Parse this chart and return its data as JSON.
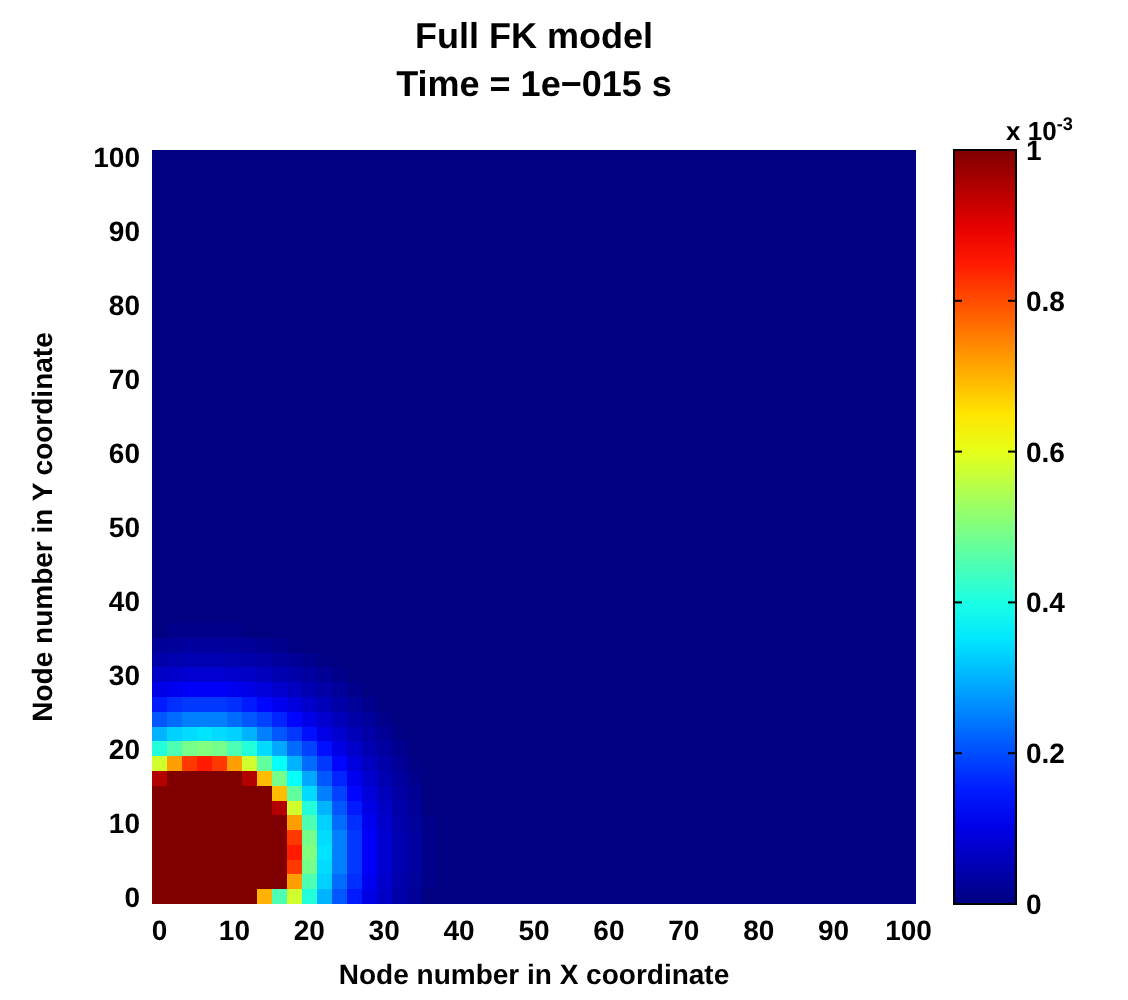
{
  "chart_data": {
    "type": "heatmap",
    "title": "Full FK model",
    "subtitle": "Time = 1e−015 s",
    "xlabel": "Node number in X coordinate",
    "ylabel": "Node number in Y coordinate",
    "clabel": "x 10$^{-3}$",
    "categories": [
      "0",
      null,
      null,
      null,
      null,
      "10",
      null,
      null,
      null,
      null,
      "20",
      null,
      null,
      null,
      null,
      "30",
      null,
      null,
      null,
      null,
      "40",
      null,
      null,
      null,
      null,
      "50",
      null,
      null,
      null,
      null,
      "60",
      null,
      null,
      null,
      null,
      "70",
      null,
      null,
      null,
      null,
      "80",
      null,
      null,
      null,
      null,
      "90",
      null,
      null,
      null,
      null,
      "100"
    ],
    "y_categories": [
      "100",
      null,
      null,
      null,
      null,
      "90",
      null,
      null,
      null,
      null,
      "80",
      null,
      null,
      null,
      null,
      "70",
      null,
      null,
      null,
      null,
      "60",
      null,
      null,
      null,
      null,
      "50",
      null,
      null,
      null,
      null,
      "40",
      null,
      null,
      null,
      null,
      "30",
      null,
      null,
      null,
      null,
      "20",
      null,
      null,
      null,
      null,
      "10",
      null,
      null,
      null,
      null,
      "0"
    ],
    "clim": [
      0,
      1
    ],
    "cticks": [
      0,
      0.2,
      0.4,
      0.6,
      0.8,
      1
    ],
    "cells": [
      [
        0,
        0,
        0,
        0,
        0,
        0,
        0,
        0,
        0,
        0,
        0,
        0,
        0,
        0,
        0,
        0,
        0,
        0,
        0,
        0,
        0,
        0,
        0,
        0,
        0,
        0,
        0,
        0,
        0,
        0,
        0,
        0,
        0,
        0,
        0,
        0,
        0,
        0,
        0,
        0,
        0,
        0,
        0,
        0,
        0,
        0,
        0,
        0,
        0,
        0,
        0
      ],
      [
        0,
        0,
        0,
        0,
        0,
        0,
        0,
        0,
        0,
        0,
        0,
        0,
        0,
        0,
        0,
        0,
        0,
        0,
        0,
        0,
        0,
        0,
        0,
        0,
        0,
        0,
        0,
        0,
        0,
        0,
        0,
        0,
        0,
        0,
        0,
        0,
        0,
        0,
        0,
        0,
        0,
        0,
        0,
        0,
        0,
        0,
        0,
        0,
        0,
        0,
        0
      ],
      [
        0,
        0,
        0,
        0,
        0,
        0,
        0,
        0,
        0,
        0,
        0,
        0,
        0,
        0,
        0,
        0,
        0,
        0,
        0,
        0,
        0,
        0,
        0,
        0,
        0,
        0,
        0,
        0,
        0,
        0,
        0,
        0,
        0,
        0,
        0,
        0,
        0,
        0,
        0,
        0,
        0,
        0,
        0,
        0,
        0,
        0,
        0,
        0,
        0,
        0,
        0
      ],
      [
        0,
        0,
        0,
        0,
        0,
        0,
        0,
        0,
        0,
        0,
        0,
        0,
        0,
        0,
        0,
        0,
        0,
        0,
        0,
        0,
        0,
        0,
        0,
        0,
        0,
        0,
        0,
        0,
        0,
        0,
        0,
        0,
        0,
        0,
        0,
        0,
        0,
        0,
        0,
        0,
        0,
        0,
        0,
        0,
        0,
        0,
        0,
        0,
        0,
        0,
        0
      ],
      [
        0,
        0,
        0,
        0,
        0,
        0,
        0,
        0,
        0,
        0,
        0,
        0,
        0,
        0,
        0,
        0,
        0,
        0,
        0,
        0,
        0,
        0,
        0,
        0,
        0,
        0,
        0,
        0,
        0,
        0,
        0,
        0,
        0,
        0,
        0,
        0,
        0,
        0,
        0,
        0,
        0,
        0,
        0,
        0,
        0,
        0,
        0,
        0,
        0,
        0,
        0
      ],
      [
        0,
        0,
        0,
        0,
        0,
        0,
        0,
        0,
        0,
        0,
        0,
        0,
        0,
        0,
        0,
        0,
        0,
        0,
        0,
        0,
        0,
        0,
        0,
        0,
        0,
        0,
        0,
        0,
        0,
        0,
        0,
        0,
        0,
        0,
        0,
        0,
        0,
        0,
        0,
        0,
        0,
        0,
        0,
        0,
        0,
        0,
        0,
        0,
        0,
        0,
        0
      ],
      [
        0,
        0,
        0,
        0,
        0,
        0,
        0,
        0,
        0,
        0,
        0,
        0,
        0,
        0,
        0,
        0,
        0,
        0,
        0,
        0,
        0,
        0,
        0,
        0,
        0,
        0,
        0,
        0,
        0,
        0,
        0,
        0,
        0,
        0,
        0,
        0,
        0,
        0,
        0,
        0,
        0,
        0,
        0,
        0,
        0,
        0,
        0,
        0,
        0,
        0,
        0
      ],
      [
        0,
        0,
        0,
        0,
        0,
        0,
        0,
        0,
        0,
        0,
        0,
        0,
        0,
        0,
        0,
        0,
        0,
        0,
        0,
        0,
        0,
        0,
        0,
        0,
        0,
        0,
        0,
        0,
        0,
        0,
        0,
        0,
        0,
        0,
        0,
        0,
        0,
        0,
        0,
        0,
        0,
        0,
        0,
        0,
        0,
        0,
        0,
        0,
        0,
        0,
        0
      ],
      [
        0,
        0,
        0,
        0,
        0,
        0,
        0,
        0,
        0,
        0,
        0,
        0,
        0,
        0,
        0,
        0,
        0,
        0,
        0,
        0,
        0,
        0,
        0,
        0,
        0,
        0,
        0,
        0,
        0,
        0,
        0,
        0,
        0,
        0,
        0,
        0,
        0,
        0,
        0,
        0,
        0,
        0,
        0,
        0,
        0,
        0,
        0,
        0,
        0,
        0,
        0
      ],
      [
        0,
        0,
        0,
        0,
        0,
        0,
        0,
        0,
        0,
        0,
        0,
        0,
        0,
        0,
        0,
        0,
        0,
        0,
        0,
        0,
        0,
        0,
        0,
        0,
        0,
        0,
        0,
        0,
        0,
        0,
        0,
        0,
        0,
        0,
        0,
        0,
        0,
        0,
        0,
        0,
        0,
        0,
        0,
        0,
        0,
        0,
        0,
        0,
        0,
        0,
        0
      ],
      [
        0,
        0,
        0,
        0,
        0,
        0,
        0,
        0,
        0,
        0,
        0,
        0,
        0,
        0,
        0,
        0,
        0,
        0,
        0,
        0,
        0,
        0,
        0,
        0,
        0,
        0,
        0,
        0,
        0,
        0,
        0,
        0,
        0,
        0,
        0,
        0,
        0,
        0,
        0,
        0,
        0,
        0,
        0,
        0,
        0,
        0,
        0,
        0,
        0,
        0,
        0
      ],
      [
        0,
        0,
        0,
        0,
        0,
        0,
        0,
        0,
        0,
        0,
        0,
        0,
        0,
        0,
        0,
        0,
        0,
        0,
        0,
        0,
        0,
        0,
        0,
        0,
        0,
        0,
        0,
        0,
        0,
        0,
        0,
        0,
        0,
        0,
        0,
        0,
        0,
        0,
        0,
        0,
        0,
        0,
        0,
        0,
        0,
        0,
        0,
        0,
        0,
        0,
        0
      ],
      [
        0,
        0,
        0,
        0,
        0,
        0,
        0,
        0,
        0,
        0,
        0,
        0,
        0,
        0,
        0,
        0,
        0,
        0,
        0,
        0,
        0,
        0,
        0,
        0,
        0,
        0,
        0,
        0,
        0,
        0,
        0,
        0,
        0,
        0,
        0,
        0,
        0,
        0,
        0,
        0,
        0,
        0,
        0,
        0,
        0,
        0,
        0,
        0,
        0,
        0,
        0
      ],
      [
        0,
        0,
        0,
        0,
        0,
        0,
        0,
        0,
        0,
        0,
        0,
        0,
        0,
        0,
        0,
        0,
        0,
        0,
        0,
        0,
        0,
        0,
        0,
        0,
        0,
        0,
        0,
        0,
        0,
        0,
        0,
        0,
        0,
        0,
        0,
        0,
        0,
        0,
        0,
        0,
        0,
        0,
        0,
        0,
        0,
        0,
        0,
        0,
        0,
        0,
        0
      ],
      [
        0,
        0,
        0,
        0,
        0,
        0,
        0,
        0,
        0,
        0,
        0,
        0,
        0,
        0,
        0,
        0,
        0,
        0,
        0,
        0,
        0,
        0,
        0,
        0,
        0,
        0,
        0,
        0,
        0,
        0,
        0,
        0,
        0,
        0,
        0,
        0,
        0,
        0,
        0,
        0,
        0,
        0,
        0,
        0,
        0,
        0,
        0,
        0,
        0,
        0,
        0
      ],
      [
        0,
        0,
        0,
        0,
        0,
        0,
        0,
        0,
        0,
        0,
        0,
        0,
        0,
        0,
        0,
        0,
        0,
        0,
        0,
        0,
        0,
        0,
        0,
        0,
        0,
        0,
        0,
        0,
        0,
        0,
        0,
        0,
        0,
        0,
        0,
        0,
        0,
        0,
        0,
        0,
        0,
        0,
        0,
        0,
        0,
        0,
        0,
        0,
        0,
        0,
        0
      ],
      [
        0,
        0,
        0,
        0,
        0,
        0,
        0,
        0,
        0,
        0,
        0,
        0,
        0,
        0,
        0,
        0,
        0,
        0,
        0,
        0,
        0,
        0,
        0,
        0,
        0,
        0,
        0,
        0,
        0,
        0,
        0,
        0,
        0,
        0,
        0,
        0,
        0,
        0,
        0,
        0,
        0,
        0,
        0,
        0,
        0,
        0,
        0,
        0,
        0,
        0,
        0
      ],
      [
        0,
        0,
        0,
        0,
        0,
        0,
        0,
        0,
        0,
        0,
        0,
        0,
        0,
        0,
        0,
        0,
        0,
        0,
        0,
        0,
        0,
        0,
        0,
        0,
        0,
        0,
        0,
        0,
        0,
        0,
        0,
        0,
        0,
        0,
        0,
        0,
        0,
        0,
        0,
        0,
        0,
        0,
        0,
        0,
        0,
        0,
        0,
        0,
        0,
        0,
        0
      ],
      [
        0,
        0,
        0,
        0,
        0,
        0,
        0,
        0,
        0,
        0,
        0,
        0,
        0,
        0,
        0,
        0,
        0,
        0,
        0,
        0,
        0,
        0,
        0,
        0,
        0,
        0,
        0,
        0,
        0,
        0,
        0,
        0,
        0,
        0,
        0,
        0,
        0,
        0,
        0,
        0,
        0,
        0,
        0,
        0,
        0,
        0,
        0,
        0,
        0,
        0,
        0
      ],
      [
        0,
        0,
        0,
        0,
        0,
        0,
        0,
        0,
        0,
        0,
        0,
        0,
        0,
        0,
        0,
        0,
        0,
        0,
        0,
        0,
        0,
        0,
        0,
        0,
        0,
        0,
        0,
        0,
        0,
        0,
        0,
        0,
        0,
        0,
        0,
        0,
        0,
        0,
        0,
        0,
        0,
        0,
        0,
        0,
        0,
        0,
        0,
        0,
        0,
        0,
        0
      ],
      [
        0,
        0,
        0,
        0,
        0,
        0,
        0,
        0,
        0,
        0,
        0,
        0,
        0,
        0,
        0,
        0,
        0,
        0,
        0,
        0,
        0,
        0,
        0,
        0,
        0,
        0,
        0,
        0,
        0,
        0,
        0,
        0,
        0,
        0,
        0,
        0,
        0,
        0,
        0,
        0,
        0,
        0,
        0,
        0,
        0,
        0,
        0,
        0,
        0,
        0,
        0
      ],
      [
        0,
        0,
        0,
        0,
        0,
        0,
        0,
        0,
        0,
        0,
        0,
        0,
        0,
        0,
        0,
        0,
        0,
        0,
        0,
        0,
        0,
        0,
        0,
        0,
        0,
        0,
        0,
        0,
        0,
        0,
        0,
        0,
        0,
        0,
        0,
        0,
        0,
        0,
        0,
        0,
        0,
        0,
        0,
        0,
        0,
        0,
        0,
        0,
        0,
        0,
        0
      ],
      [
        0,
        0,
        0,
        0,
        0,
        0,
        0,
        0,
        0,
        0,
        0,
        0,
        0,
        0,
        0,
        0,
        0,
        0,
        0,
        0,
        0,
        0,
        0,
        0,
        0,
        0,
        0,
        0,
        0,
        0,
        0,
        0,
        0,
        0,
        0,
        0,
        0,
        0,
        0,
        0,
        0,
        0,
        0,
        0,
        0,
        0,
        0,
        0,
        0,
        0,
        0
      ],
      [
        0,
        0,
        0,
        0,
        0,
        0,
        0,
        0,
        0,
        0,
        0,
        0,
        0,
        0,
        0,
        0,
        0,
        0,
        0,
        0,
        0,
        0,
        0,
        0,
        0,
        0,
        0,
        0,
        0,
        0,
        0,
        0,
        0,
        0,
        0,
        0,
        0,
        0,
        0,
        0,
        0,
        0,
        0,
        0,
        0,
        0,
        0,
        0,
        0,
        0,
        0
      ],
      [
        0,
        0,
        0,
        0,
        0,
        0,
        0,
        0,
        0,
        0,
        0,
        0,
        0,
        0,
        0,
        0,
        0,
        0,
        0,
        0,
        0,
        0,
        0,
        0,
        0,
        0,
        0,
        0,
        0,
        0,
        0,
        0,
        0,
        0,
        0,
        0,
        0,
        0,
        0,
        0,
        0,
        0,
        0,
        0,
        0,
        0,
        0,
        0,
        0,
        0,
        0
      ],
      [
        0,
        0,
        0,
        0,
        0,
        0,
        0,
        0,
        0,
        0,
        0,
        0,
        0,
        0,
        0,
        0,
        0,
        0,
        0,
        0,
        0,
        0,
        0,
        0,
        0,
        0,
        0,
        0,
        0,
        0,
        0,
        0,
        0,
        0,
        0,
        0,
        0,
        0,
        0,
        0,
        0,
        0,
        0,
        0,
        0,
        0,
        0,
        0,
        0,
        0,
        0
      ],
      [
        0,
        0,
        0,
        0,
        0,
        0,
        0,
        0,
        0,
        0,
        0,
        0,
        0,
        0,
        0,
        0,
        0,
        0,
        0,
        0,
        0,
        0,
        0,
        0,
        0,
        0,
        0,
        0,
        0,
        0,
        0,
        0,
        0,
        0,
        0,
        0,
        0,
        0,
        0,
        0,
        0,
        0,
        0,
        0,
        0,
        0,
        0,
        0,
        0,
        0,
        0
      ],
      [
        0,
        0,
        0,
        0,
        0,
        0,
        0,
        0,
        0,
        0,
        0,
        0,
        0,
        0,
        0,
        0,
        0,
        0,
        0,
        0,
        0,
        0,
        0,
        0,
        0,
        0,
        0,
        0,
        0,
        0,
        0,
        0,
        0,
        0,
        0,
        0,
        0,
        0,
        0,
        0,
        0,
        0,
        0,
        0,
        0,
        0,
        0,
        0,
        0,
        0,
        0
      ],
      [
        0,
        0,
        0,
        0,
        0,
        0,
        0,
        0,
        0,
        0,
        0,
        0,
        0,
        0,
        0,
        0,
        0,
        0,
        0,
        0,
        0,
        0,
        0,
        0,
        0,
        0,
        0,
        0,
        0,
        0,
        0,
        0,
        0,
        0,
        0,
        0,
        0,
        0,
        0,
        0,
        0,
        0,
        0,
        0,
        0,
        0,
        0,
        0,
        0,
        0,
        0
      ],
      [
        0,
        0,
        0,
        0,
        0,
        0,
        0,
        0,
        0,
        0,
        0,
        0,
        0,
        0,
        0,
        0,
        0,
        0,
        0,
        0,
        0,
        0,
        0,
        0,
        0,
        0,
        0,
        0,
        0,
        0,
        0,
        0,
        0,
        0,
        0,
        0,
        0,
        0,
        0,
        0,
        0,
        0,
        0,
        0,
        0,
        0,
        0,
        0,
        0,
        0,
        0
      ],
      [
        0,
        0,
        0,
        0,
        0,
        0,
        0,
        0,
        0,
        0,
        0,
        0,
        0,
        0,
        0,
        0,
        0,
        0,
        0,
        0,
        0,
        0,
        0,
        0,
        0,
        0,
        0,
        0,
        0,
        0,
        0,
        0,
        0,
        0,
        0,
        0,
        0,
        0,
        0,
        0,
        0,
        0,
        0,
        0,
        0,
        0,
        0,
        0,
        0,
        0,
        0
      ],
      [
        0,
        0,
        0,
        0,
        0,
        0,
        0,
        0,
        0,
        0,
        0,
        0,
        0,
        0,
        0,
        0,
        0,
        0,
        0,
        0,
        0,
        0,
        0,
        0,
        0,
        0,
        0,
        0,
        0,
        0,
        0,
        0,
        0,
        0,
        0,
        0,
        0,
        0,
        0,
        0,
        0,
        0,
        0,
        0,
        0,
        0,
        0,
        0,
        0,
        0,
        0
      ],
      [
        0,
        0.01,
        0.01,
        0.01,
        0.01,
        0.01,
        0,
        0,
        0,
        0,
        0,
        0,
        0,
        0,
        0,
        0,
        0,
        0,
        0,
        0,
        0,
        0,
        0,
        0,
        0,
        0,
        0,
        0,
        0,
        0,
        0,
        0,
        0,
        0,
        0,
        0,
        0,
        0,
        0,
        0,
        0,
        0,
        0,
        0,
        0,
        0,
        0,
        0,
        0,
        0,
        0
      ],
      [
        0.024,
        0.027,
        0.03,
        0.03,
        0.03,
        0.027,
        0.024,
        0.019,
        0.013,
        0.005,
        0,
        0,
        0,
        0,
        0,
        0,
        0,
        0,
        0,
        0,
        0,
        0,
        0,
        0,
        0,
        0,
        0,
        0,
        0,
        0,
        0,
        0,
        0,
        0,
        0,
        0,
        0,
        0,
        0,
        0,
        0,
        0,
        0,
        0,
        0,
        0,
        0,
        0,
        0,
        0,
        0
      ],
      [
        0.043,
        0.047,
        0.05,
        0.05,
        0.05,
        0.047,
        0.043,
        0.038,
        0.031,
        0.024,
        0.015,
        0.005,
        0,
        0,
        0,
        0,
        0,
        0,
        0,
        0,
        0,
        0,
        0,
        0,
        0,
        0,
        0,
        0,
        0,
        0,
        0,
        0,
        0,
        0,
        0,
        0,
        0,
        0,
        0,
        0,
        0,
        0,
        0,
        0,
        0,
        0,
        0,
        0,
        0,
        0,
        0
      ],
      [
        0.07,
        0.075,
        0.08,
        0.08,
        0.08,
        0.075,
        0.07,
        0.06,
        0.05,
        0.042,
        0.032,
        0.022,
        0.01,
        0,
        0,
        0,
        0,
        0,
        0,
        0,
        0,
        0,
        0,
        0,
        0,
        0,
        0,
        0,
        0,
        0,
        0,
        0,
        0,
        0,
        0,
        0,
        0,
        0,
        0,
        0,
        0,
        0,
        0,
        0,
        0,
        0,
        0,
        0,
        0,
        0,
        0
      ],
      [
        0.1,
        0.11,
        0.12,
        0.12,
        0.12,
        0.11,
        0.1,
        0.09,
        0.077,
        0.064,
        0.049,
        0.038,
        0.026,
        0.013,
        0,
        0,
        0,
        0,
        0,
        0,
        0,
        0,
        0,
        0,
        0,
        0,
        0,
        0,
        0,
        0,
        0,
        0,
        0,
        0,
        0,
        0,
        0,
        0,
        0,
        0,
        0,
        0,
        0,
        0,
        0,
        0,
        0,
        0,
        0,
        0,
        0
      ],
      [
        0.15,
        0.17,
        0.18,
        0.18,
        0.18,
        0.17,
        0.15,
        0.13,
        0.11,
        0.094,
        0.074,
        0.056,
        0.041,
        0.027,
        0.013,
        0,
        0,
        0,
        0,
        0,
        0,
        0,
        0,
        0,
        0,
        0,
        0,
        0,
        0,
        0,
        0,
        0,
        0,
        0,
        0,
        0,
        0,
        0,
        0,
        0,
        0,
        0,
        0,
        0,
        0,
        0,
        0,
        0,
        0,
        0,
        0
      ],
      [
        0.21,
        0.23,
        0.25,
        0.25,
        0.25,
        0.23,
        0.21,
        0.19,
        0.16,
        0.13,
        0.1,
        0.078,
        0.058,
        0.041,
        0.026,
        0.01,
        0,
        0,
        0,
        0,
        0,
        0,
        0,
        0,
        0,
        0,
        0,
        0,
        0,
        0,
        0,
        0,
        0,
        0,
        0,
        0,
        0,
        0,
        0,
        0,
        0,
        0,
        0,
        0,
        0,
        0,
        0,
        0,
        0,
        0,
        0
      ],
      [
        0.3,
        0.33,
        0.34,
        0.35,
        0.34,
        0.33,
        0.3,
        0.25,
        0.21,
        0.18,
        0.14,
        0.1,
        0.078,
        0.056,
        0.038,
        0.022,
        0.005,
        0,
        0,
        0,
        0,
        0,
        0,
        0,
        0,
        0,
        0,
        0,
        0,
        0,
        0,
        0,
        0,
        0,
        0,
        0,
        0,
        0,
        0,
        0,
        0,
        0,
        0,
        0,
        0,
        0,
        0,
        0,
        0,
        0,
        0
      ],
      [
        0.41,
        0.45,
        0.49,
        0.5,
        0.49,
        0.45,
        0.41,
        0.34,
        0.29,
        0.23,
        0.19,
        0.14,
        0.1,
        0.074,
        0.049,
        0.032,
        0.015,
        0,
        0,
        0,
        0,
        0,
        0,
        0,
        0,
        0,
        0,
        0,
        0,
        0,
        0,
        0,
        0,
        0,
        0,
        0,
        0,
        0,
        0,
        0,
        0,
        0,
        0,
        0,
        0,
        0,
        0,
        0,
        0,
        0,
        0
      ],
      [
        0.58,
        0.72,
        0.82,
        0.85,
        0.82,
        0.72,
        0.58,
        0.47,
        0.38,
        0.3,
        0.23,
        0.18,
        0.13,
        0.094,
        0.064,
        0.042,
        0.024,
        0.005,
        0,
        0,
        0,
        0,
        0,
        0,
        0,
        0,
        0,
        0,
        0,
        0,
        0,
        0,
        0,
        0,
        0,
        0,
        0,
        0,
        0,
        0,
        0,
        0,
        0,
        0,
        0,
        0,
        0,
        0,
        0,
        0,
        0
      ],
      [
        0.95,
        1,
        1,
        1,
        1,
        1,
        0.95,
        0.69,
        0.49,
        0.38,
        0.29,
        0.21,
        0.16,
        0.11,
        0.077,
        0.05,
        0.031,
        0.013,
        0,
        0,
        0,
        0,
        0,
        0,
        0,
        0,
        0,
        0,
        0,
        0,
        0,
        0,
        0,
        0,
        0,
        0,
        0,
        0,
        0,
        0,
        0,
        0,
        0,
        0,
        0,
        0,
        0,
        0,
        0,
        0,
        0
      ],
      [
        1,
        1,
        1,
        1,
        1,
        1,
        1,
        1,
        0.69,
        0.47,
        0.34,
        0.25,
        0.19,
        0.13,
        0.09,
        0.06,
        0.038,
        0.019,
        0,
        0,
        0,
        0,
        0,
        0,
        0,
        0,
        0,
        0,
        0,
        0,
        0,
        0,
        0,
        0,
        0,
        0,
        0,
        0,
        0,
        0,
        0,
        0,
        0,
        0,
        0,
        0,
        0,
        0,
        0,
        0,
        0
      ],
      [
        1,
        1,
        1,
        1,
        1,
        1,
        1,
        1,
        0.95,
        0.58,
        0.41,
        0.3,
        0.21,
        0.15,
        0.1,
        0.07,
        0.043,
        0.024,
        0,
        0,
        0,
        0,
        0,
        0,
        0,
        0,
        0,
        0,
        0,
        0,
        0,
        0,
        0,
        0,
        0,
        0,
        0,
        0,
        0,
        0,
        0,
        0,
        0,
        0,
        0,
        0,
        0,
        0,
        0,
        0,
        0
      ],
      [
        1,
        1,
        1,
        1,
        1,
        1,
        1,
        1,
        1,
        0.72,
        0.45,
        0.33,
        0.23,
        0.17,
        0.11,
        0.075,
        0.047,
        0.027,
        0.01,
        0,
        0,
        0,
        0,
        0,
        0,
        0,
        0,
        0,
        0,
        0,
        0,
        0,
        0,
        0,
        0,
        0,
        0,
        0,
        0,
        0,
        0,
        0,
        0,
        0,
        0,
        0,
        0,
        0,
        0,
        0,
        0
      ],
      [
        1,
        1,
        1,
        1,
        1,
        1,
        1,
        1,
        1,
        0.82,
        0.49,
        0.34,
        0.25,
        0.18,
        0.12,
        0.08,
        0.05,
        0.03,
        0.01,
        0,
        0,
        0,
        0,
        0,
        0,
        0,
        0,
        0,
        0,
        0,
        0,
        0,
        0,
        0,
        0,
        0,
        0,
        0,
        0,
        0,
        0,
        0,
        0,
        0,
        0,
        0,
        0,
        0,
        0,
        0,
        0
      ],
      [
        1,
        1,
        1,
        1,
        1,
        1,
        1,
        1,
        1,
        0.85,
        0.5,
        0.35,
        0.25,
        0.18,
        0.12,
        0.08,
        0.05,
        0.03,
        0.01,
        0,
        0,
        0,
        0,
        0,
        0,
        0,
        0,
        0,
        0,
        0,
        0,
        0,
        0,
        0,
        0,
        0,
        0,
        0,
        0,
        0,
        0,
        0,
        0,
        0,
        0,
        0,
        0,
        0,
        0,
        0,
        0
      ],
      [
        1,
        1,
        1,
        1,
        1,
        1,
        1,
        1,
        1,
        0.82,
        0.49,
        0.34,
        0.25,
        0.18,
        0.12,
        0.08,
        0.05,
        0.03,
        0.01,
        0,
        0,
        0,
        0,
        0,
        0,
        0,
        0,
        0,
        0,
        0,
        0,
        0,
        0,
        0,
        0,
        0,
        0,
        0,
        0,
        0,
        0,
        0,
        0,
        0,
        0,
        0,
        0,
        0,
        0,
        0,
        0
      ],
      [
        1,
        1,
        1,
        1,
        1,
        1,
        1,
        1,
        1,
        0.72,
        0.45,
        0.33,
        0.23,
        0.17,
        0.11,
        0.075,
        0.047,
        0.027,
        0.01,
        0,
        0,
        0,
        0,
        0,
        0,
        0,
        0,
        0,
        0,
        0,
        0,
        0,
        0,
        0,
        0,
        0,
        0,
        0,
        0,
        0,
        0,
        0,
        0,
        0,
        0,
        0,
        0,
        0,
        0,
        0,
        0
      ],
      [
        1,
        1,
        1,
        1,
        1,
        1,
        1,
        0.7,
        0.45,
        0.58,
        0.41,
        0.3,
        0.21,
        0.15,
        0.1,
        0.07,
        0.043,
        0.024,
        0,
        0,
        0,
        0,
        0,
        0,
        0,
        0,
        0,
        0,
        0,
        0,
        0,
        0,
        0,
        0,
        0,
        0,
        0,
        0,
        0,
        0,
        0,
        0,
        0,
        0,
        0,
        0,
        0,
        0,
        0,
        0,
        0
      ]
    ]
  }
}
